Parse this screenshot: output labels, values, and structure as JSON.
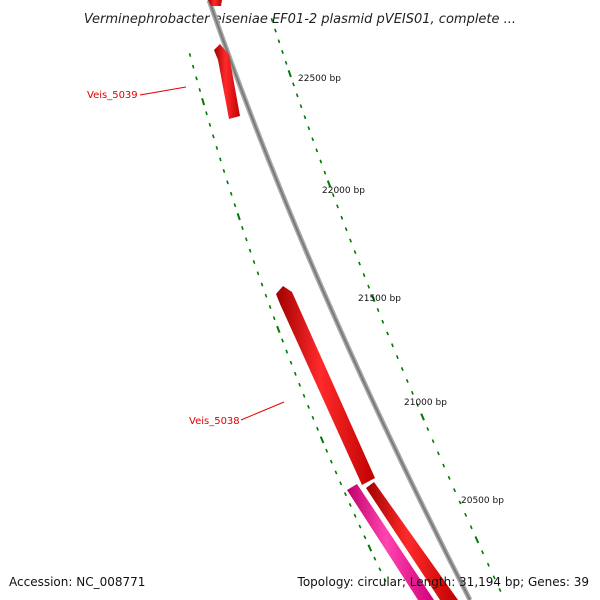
{
  "title": "Verminephrobacter eiseniae EF01-2 plasmid pVEIS01, complete ...",
  "accession": "Accession: NC_008771",
  "topology": "Topology: circular; Length: 31,194 bp; Genes: 39",
  "tick_labels": [
    "22500 bp",
    "22000 bp",
    "21500 bp",
    "21000 bp",
    "20500 bp"
  ],
  "genes": [
    {
      "name": "Veis_5039",
      "strand": "+",
      "color": "#ff0000"
    },
    {
      "name": "Veis_5038",
      "strand": "+",
      "color": "#ff0000"
    },
    {
      "name": "",
      "strand": "-",
      "color": "#ff1493"
    }
  ],
  "colors": {
    "backbone": "#888888",
    "ticks": "#007a00",
    "gene_forward": "#ff0000",
    "gene_pink": "#ff1493",
    "label": "#e00000"
  }
}
